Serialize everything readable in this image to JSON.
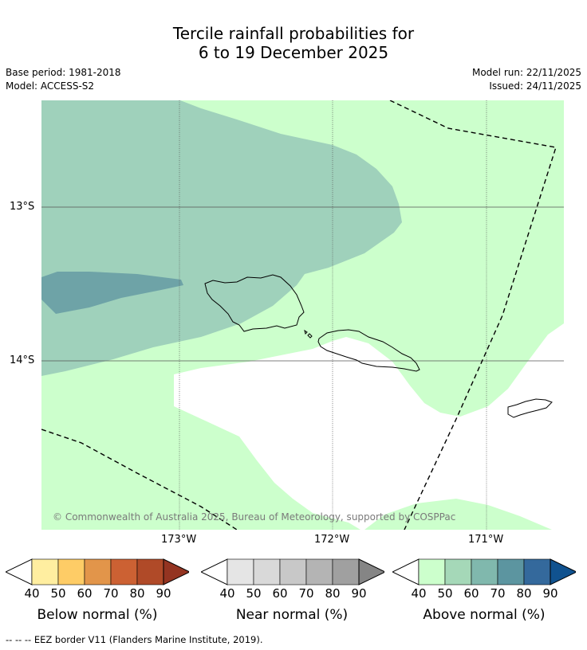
{
  "title": {
    "line1": "Tercile rainfall probabilities for",
    "line2": "6 to 19 December 2025"
  },
  "meta": {
    "base_period": "Base period: 1981-2018",
    "model": "Model: ACCESS-S2",
    "model_run": "Model run: 22/11/2025",
    "issued": "Issued: 24/11/2025"
  },
  "map": {
    "lat_ticks": [
      "13°S",
      "14°S"
    ],
    "lon_ticks": [
      "173°W",
      "172°W",
      "171°W"
    ],
    "copyright": "© Commonwealth of Australia 2025, Bureau of Meteorology, supported by COSPPac"
  },
  "colorbars": {
    "tick_values": [
      "40",
      "50",
      "60",
      "70",
      "80",
      "90"
    ],
    "below": {
      "label": "Below normal (%)",
      "colors": [
        "#ffeea0",
        "#fecc66",
        "#e2954a",
        "#cc6133",
        "#b04a28",
        "#943421"
      ]
    },
    "near": {
      "label": "Near normal (%)",
      "colors": [
        "#e5e5e5",
        "#d9d9d9",
        "#c8c8c8",
        "#b4b4b4",
        "#a0a0a0",
        "#858585"
      ]
    },
    "above": {
      "label": "Above normal (%)",
      "colors": [
        "#ccffcc",
        "#a5d8b8",
        "#80b8ad",
        "#5c95a0",
        "#34699c",
        "#10528f"
      ]
    }
  },
  "footer": {
    "eez_note": "--  --  -- EEZ border V11 (Flanders Marine Institute, 2019)."
  }
}
